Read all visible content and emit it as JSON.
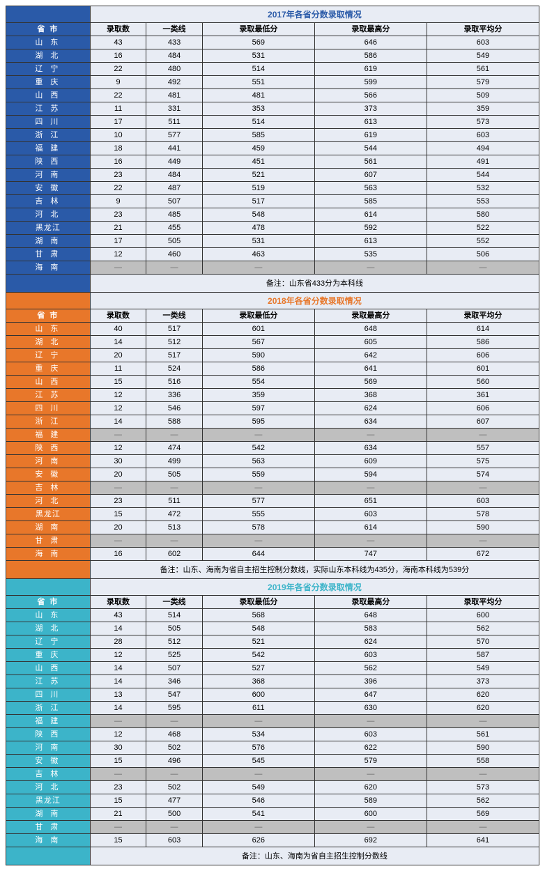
{
  "columns": [
    "省 市",
    "录取数",
    "一类线",
    "录取最低分",
    "录取最高分",
    "录取平均分"
  ],
  "sections": [
    {
      "title": "2017年各省分数录取情况",
      "title_color": "#2a5aa8",
      "sidebar_color": "#2a5aa8",
      "note": "备注：山东省433分为本科线",
      "rows": [
        {
          "prov": "山 东",
          "v": [
            "43",
            "433",
            "569",
            "646",
            "603"
          ]
        },
        {
          "prov": "湖 北",
          "v": [
            "16",
            "484",
            "531",
            "586",
            "549"
          ]
        },
        {
          "prov": "辽 宁",
          "v": [
            "22",
            "480",
            "514",
            "619",
            "561"
          ]
        },
        {
          "prov": "重 庆",
          "v": [
            "9",
            "492",
            "551",
            "599",
            "579"
          ]
        },
        {
          "prov": "山 西",
          "v": [
            "22",
            "481",
            "481",
            "566",
            "509"
          ]
        },
        {
          "prov": "江 苏",
          "v": [
            "11",
            "331",
            "353",
            "373",
            "359"
          ]
        },
        {
          "prov": "四 川",
          "v": [
            "17",
            "511",
            "514",
            "613",
            "573"
          ]
        },
        {
          "prov": "浙 江",
          "v": [
            "10",
            "577",
            "585",
            "619",
            "603"
          ]
        },
        {
          "prov": "福 建",
          "v": [
            "18",
            "441",
            "459",
            "544",
            "494"
          ]
        },
        {
          "prov": "陕 西",
          "v": [
            "16",
            "449",
            "451",
            "561",
            "491"
          ]
        },
        {
          "prov": "河 南",
          "v": [
            "23",
            "484",
            "521",
            "607",
            "544"
          ]
        },
        {
          "prov": "安 徽",
          "v": [
            "22",
            "487",
            "519",
            "563",
            "532"
          ]
        },
        {
          "prov": "吉 林",
          "v": [
            "9",
            "507",
            "517",
            "585",
            "553"
          ]
        },
        {
          "prov": "河 北",
          "v": [
            "23",
            "485",
            "548",
            "614",
            "580"
          ]
        },
        {
          "prov": "黑龙江",
          "v": [
            "21",
            "455",
            "478",
            "592",
            "522"
          ]
        },
        {
          "prov": "湖 南",
          "v": [
            "17",
            "505",
            "531",
            "613",
            "552"
          ]
        },
        {
          "prov": "甘 肃",
          "v": [
            "12",
            "460",
            "463",
            "535",
            "506"
          ]
        },
        {
          "prov": "海 南",
          "v": [
            null,
            null,
            null,
            null,
            null
          ]
        }
      ]
    },
    {
      "title": "2018年各省分数录取情况",
      "title_color": "#e8772a",
      "sidebar_color": "#e8772a",
      "note": "备注：山东、海南为省自主招生控制分数线，实际山东本科线为435分，海南本科线为539分",
      "rows": [
        {
          "prov": "山 东",
          "v": [
            "40",
            "517",
            "601",
            "648",
            "614"
          ]
        },
        {
          "prov": "湖 北",
          "v": [
            "14",
            "512",
            "567",
            "605",
            "586"
          ]
        },
        {
          "prov": "辽 宁",
          "v": [
            "20",
            "517",
            "590",
            "642",
            "606"
          ]
        },
        {
          "prov": "重 庆",
          "v": [
            "11",
            "524",
            "586",
            "641",
            "601"
          ]
        },
        {
          "prov": "山 西",
          "v": [
            "15",
            "516",
            "554",
            "569",
            "560"
          ]
        },
        {
          "prov": "江 苏",
          "v": [
            "12",
            "336",
            "359",
            "368",
            "361"
          ]
        },
        {
          "prov": "四 川",
          "v": [
            "12",
            "546",
            "597",
            "624",
            "606"
          ]
        },
        {
          "prov": "浙 江",
          "v": [
            "14",
            "588",
            "595",
            "634",
            "607"
          ]
        },
        {
          "prov": "福 建",
          "v": [
            null,
            null,
            null,
            null,
            null
          ]
        },
        {
          "prov": "陕 西",
          "v": [
            "12",
            "474",
            "542",
            "634",
            "557"
          ]
        },
        {
          "prov": "河 南",
          "v": [
            "30",
            "499",
            "563",
            "609",
            "575"
          ]
        },
        {
          "prov": "安 徽",
          "v": [
            "20",
            "505",
            "559",
            "594",
            "574"
          ]
        },
        {
          "prov": "吉 林",
          "v": [
            null,
            null,
            null,
            null,
            null
          ]
        },
        {
          "prov": "河 北",
          "v": [
            "23",
            "511",
            "577",
            "651",
            "603"
          ]
        },
        {
          "prov": "黑龙江",
          "v": [
            "15",
            "472",
            "555",
            "603",
            "578"
          ]
        },
        {
          "prov": "湖 南",
          "v": [
            "20",
            "513",
            "578",
            "614",
            "590"
          ]
        },
        {
          "prov": "甘 肃",
          "v": [
            null,
            null,
            null,
            null,
            null
          ]
        },
        {
          "prov": "海 南",
          "v": [
            "16",
            "602",
            "644",
            "747",
            "672"
          ]
        }
      ]
    },
    {
      "title": "2019年各省分数录取情况",
      "title_color": "#3cb4c9",
      "sidebar_color": "#3cb4c9",
      "note": "备注：山东、海南为省自主招生控制分数线",
      "rows": [
        {
          "prov": "山 东",
          "v": [
            "43",
            "514",
            "568",
            "648",
            "600"
          ]
        },
        {
          "prov": "湖 北",
          "v": [
            "14",
            "505",
            "548",
            "583",
            "562"
          ]
        },
        {
          "prov": "辽 宁",
          "v": [
            "28",
            "512",
            "521",
            "624",
            "570"
          ]
        },
        {
          "prov": "重 庆",
          "v": [
            "12",
            "525",
            "542",
            "603",
            "587"
          ]
        },
        {
          "prov": "山 西",
          "v": [
            "14",
            "507",
            "527",
            "562",
            "549"
          ]
        },
        {
          "prov": "江 苏",
          "v": [
            "14",
            "346",
            "368",
            "396",
            "373"
          ]
        },
        {
          "prov": "四 川",
          "v": [
            "13",
            "547",
            "600",
            "647",
            "620"
          ]
        },
        {
          "prov": "浙 江",
          "v": [
            "14",
            "595",
            "611",
            "630",
            "620"
          ]
        },
        {
          "prov": "福 建",
          "v": [
            null,
            null,
            null,
            null,
            null
          ]
        },
        {
          "prov": "陕 西",
          "v": [
            "12",
            "468",
            "534",
            "603",
            "561"
          ]
        },
        {
          "prov": "河 南",
          "v": [
            "30",
            "502",
            "576",
            "622",
            "590"
          ]
        },
        {
          "prov": "安 徽",
          "v": [
            "15",
            "496",
            "545",
            "579",
            "558"
          ]
        },
        {
          "prov": "吉 林",
          "v": [
            null,
            null,
            null,
            null,
            null
          ]
        },
        {
          "prov": "河 北",
          "v": [
            "23",
            "502",
            "549",
            "620",
            "573"
          ]
        },
        {
          "prov": "黑龙江",
          "v": [
            "15",
            "477",
            "546",
            "589",
            "562"
          ]
        },
        {
          "prov": "湖 南",
          "v": [
            "21",
            "500",
            "541",
            "600",
            "569"
          ]
        },
        {
          "prov": "甘 肃",
          "v": [
            null,
            null,
            null,
            null,
            null
          ]
        },
        {
          "prov": "海 南",
          "v": [
            "15",
            "603",
            "626",
            "692",
            "641"
          ]
        }
      ]
    }
  ]
}
